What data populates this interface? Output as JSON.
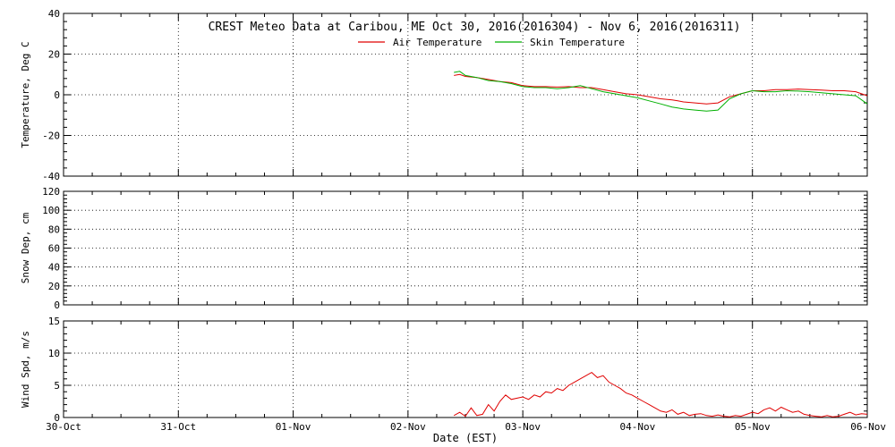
{
  "title": "CREST Meteo Data at Caribou, ME   Oct 30, 2016(2016304) - Nov  6, 2016(2016311)",
  "xlabel": "Date (EST)",
  "x_ticks": [
    "30-Oct",
    "31-Oct",
    "01-Nov",
    "02-Nov",
    "03-Nov",
    "04-Nov",
    "05-Nov",
    "06-Nov"
  ],
  "colors": {
    "air": "#e00000",
    "skin": "#00b000",
    "grid": "#000000",
    "axis": "#000000"
  },
  "chart_data": [
    {
      "type": "line",
      "ylabel": "Temperature, Deg C",
      "xlim": [
        0,
        7
      ],
      "ylim": [
        -40,
        40
      ],
      "y_ticks": [
        -40,
        -20,
        0,
        20,
        40
      ],
      "grid": true,
      "legend_position": "top-center",
      "series": [
        {
          "name": "Air Temperature",
          "color": "#e00000",
          "x": [
            3.4,
            3.45,
            3.5,
            3.6,
            3.7,
            3.8,
            3.9,
            4.0,
            4.1,
            4.2,
            4.3,
            4.4,
            4.5,
            4.6,
            4.7,
            4.8,
            4.9,
            5.0,
            5.1,
            5.2,
            5.3,
            5.35,
            5.4,
            5.5,
            5.6,
            5.7,
            5.8,
            5.9,
            6.0,
            6.1,
            6.2,
            6.3,
            6.4,
            6.5,
            6.6,
            6.7,
            6.8,
            6.9,
            7.0
          ],
          "values": [
            9.5,
            10.0,
            9.0,
            8.5,
            7.5,
            6.5,
            6.0,
            4.5,
            4.0,
            4.0,
            3.8,
            4.0,
            3.5,
            3.5,
            2.5,
            1.5,
            0.5,
            0,
            -1.0,
            -2.0,
            -2.5,
            -3.0,
            -3.5,
            -4.0,
            -4.5,
            -4.0,
            -1.0,
            0.5,
            2.0,
            2.0,
            2.5,
            2.5,
            2.8,
            2.5,
            2.3,
            2.0,
            2.0,
            1.5,
            -0.5
          ]
        },
        {
          "name": "Skin Temperature",
          "color": "#00b000",
          "x": [
            3.4,
            3.45,
            3.5,
            3.6,
            3.7,
            3.8,
            3.9,
            4.0,
            4.1,
            4.2,
            4.3,
            4.4,
            4.5,
            4.6,
            4.7,
            4.8,
            4.9,
            5.0,
            5.1,
            5.2,
            5.3,
            5.35,
            5.4,
            5.5,
            5.6,
            5.7,
            5.8,
            5.9,
            6.0,
            6.1,
            6.2,
            6.3,
            6.4,
            6.5,
            6.6,
            6.7,
            6.8,
            6.9,
            7.0
          ],
          "values": [
            11.0,
            11.5,
            9.5,
            8.5,
            7.0,
            6.5,
            5.5,
            4.0,
            3.5,
            3.5,
            3.0,
            3.5,
            4.5,
            3.0,
            1.5,
            0.5,
            -0.5,
            -1.5,
            -3.0,
            -4.5,
            -6.0,
            -6.5,
            -7.0,
            -7.5,
            -8.0,
            -7.5,
            -2.0,
            0.5,
            2.0,
            1.5,
            1.5,
            2.0,
            1.8,
            1.5,
            1.0,
            0.5,
            0,
            -0.5,
            -4.5
          ]
        }
      ]
    },
    {
      "type": "line",
      "ylabel": "Snow Dep, cm",
      "xlim": [
        0,
        7
      ],
      "ylim": [
        0,
        120
      ],
      "y_ticks": [
        0,
        20,
        40,
        60,
        80,
        100,
        120
      ],
      "grid": true,
      "series": []
    },
    {
      "type": "line",
      "ylabel": "Wind Spd, m/s",
      "xlim": [
        0,
        7
      ],
      "ylim": [
        0,
        15
      ],
      "y_ticks": [
        0,
        5,
        10,
        15
      ],
      "grid": true,
      "series": [
        {
          "color": "#e00000",
          "x": [
            3.4,
            3.45,
            3.5,
            3.55,
            3.6,
            3.65,
            3.7,
            3.75,
            3.8,
            3.85,
            3.9,
            3.95,
            4.0,
            4.05,
            4.1,
            4.15,
            4.2,
            4.25,
            4.3,
            4.35,
            4.4,
            4.45,
            4.5,
            4.55,
            4.6,
            4.65,
            4.7,
            4.75,
            4.8,
            4.85,
            4.9,
            4.95,
            5.0,
            5.05,
            5.1,
            5.15,
            5.2,
            5.25,
            5.3,
            5.35,
            5.4,
            5.45,
            5.5,
            5.55,
            5.6,
            5.65,
            5.7,
            5.75,
            5.8,
            5.85,
            5.9,
            5.95,
            6.0,
            6.05,
            6.1,
            6.15,
            6.2,
            6.25,
            6.3,
            6.35,
            6.4,
            6.45,
            6.5,
            6.55,
            6.6,
            6.65,
            6.7,
            6.75,
            6.8,
            6.85,
            6.9,
            6.95,
            7.0
          ],
          "values": [
            0.3,
            0.8,
            0.2,
            1.5,
            0.3,
            0.5,
            2.0,
            1.0,
            2.5,
            3.5,
            2.8,
            3.0,
            3.2,
            2.8,
            3.5,
            3.2,
            4.0,
            3.8,
            4.5,
            4.2,
            5.0,
            5.5,
            6.0,
            6.5,
            7.0,
            6.2,
            6.5,
            5.5,
            5.0,
            4.5,
            3.8,
            3.5,
            3.0,
            2.5,
            2.0,
            1.5,
            1.0,
            0.8,
            1.2,
            0.5,
            0.8,
            0.3,
            0.5,
            0.6,
            0.3,
            0.2,
            0.4,
            0.2,
            0.1,
            0.3,
            0.2,
            0.5,
            0.8,
            0.6,
            1.2,
            1.5,
            1.0,
            1.6,
            1.2,
            0.8,
            1.0,
            0.5,
            0.3,
            0.2,
            0.1,
            0.3,
            0.1,
            0.2,
            0.5,
            0.8,
            0.4,
            0.6,
            0.5
          ]
        }
      ]
    }
  ]
}
